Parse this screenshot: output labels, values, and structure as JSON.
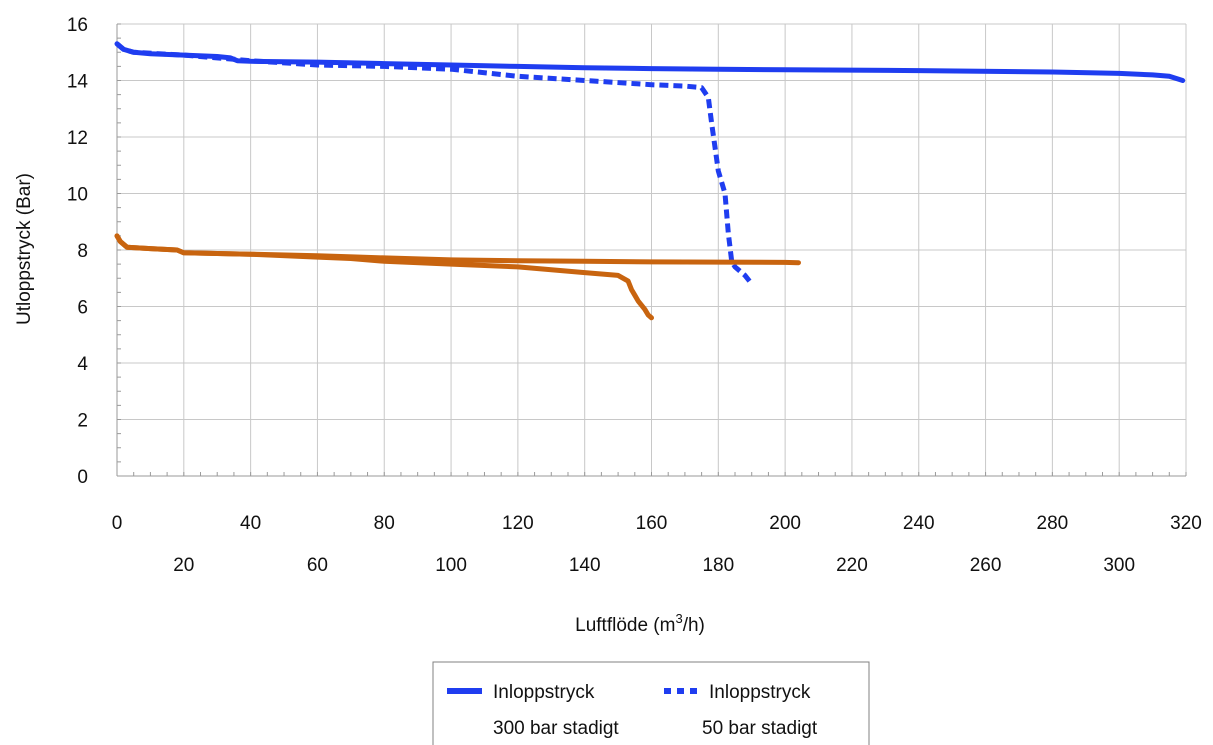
{
  "chart_data": {
    "type": "line",
    "xlabel": "Luftflöde (m",
    "xlabel_sup": "3",
    "xlabel_end": "/h)",
    "ylabel": "Utloppstryck (Bar)",
    "xlim": [
      0,
      320
    ],
    "ylim": [
      0,
      16
    ],
    "grid": true,
    "x_ticks_row1": [
      0,
      40,
      80,
      120,
      160,
      200,
      240,
      280,
      320
    ],
    "x_ticks_row2": [
      20,
      60,
      100,
      140,
      180,
      220,
      260,
      300
    ],
    "y_ticks": [
      0,
      2,
      4,
      6,
      8,
      10,
      12,
      14,
      16
    ],
    "legend_position": "bottom",
    "legend": [
      {
        "line1": "Inloppstryck",
        "line2": "300 bar stadigt",
        "style": "solid",
        "color": "#1f3df0"
      },
      {
        "line1": "Inloppstryck",
        "line2": "50 bar stadigt",
        "style": "dotted",
        "color": "#1f3df0"
      }
    ],
    "series": [
      {
        "style": "solid",
        "color": "#1f3df0",
        "x": [
          0,
          2,
          5,
          10,
          20,
          30,
          34,
          36,
          40,
          60,
          80,
          100,
          120,
          140,
          160,
          180,
          200,
          240,
          280,
          300,
          310,
          315,
          319
        ],
        "y": [
          15.3,
          15.1,
          15.0,
          14.95,
          14.9,
          14.85,
          14.8,
          14.7,
          14.68,
          14.65,
          14.6,
          14.55,
          14.5,
          14.45,
          14.42,
          14.4,
          14.38,
          14.35,
          14.3,
          14.25,
          14.2,
          14.15,
          14.0
        ]
      },
      {
        "style": "dotted",
        "color": "#1f3df0",
        "x": [
          0,
          2,
          5,
          20,
          40,
          60,
          80,
          100,
          120,
          140,
          160,
          170,
          175,
          177,
          178,
          180,
          182,
          183,
          184,
          185,
          188,
          190
        ],
        "y": [
          15.3,
          15.1,
          15.0,
          14.9,
          14.7,
          14.55,
          14.5,
          14.4,
          14.15,
          14.0,
          13.85,
          13.8,
          13.75,
          13.4,
          12.5,
          10.8,
          10.0,
          8.6,
          7.6,
          7.4,
          7.1,
          6.8
        ]
      },
      {
        "style": "solid",
        "color": "#c8640f",
        "x": [
          0,
          1,
          3,
          10,
          18,
          20,
          40,
          60,
          80,
          100,
          120,
          140,
          160,
          180,
          200,
          204
        ],
        "y": [
          8.5,
          8.3,
          8.1,
          8.05,
          8.0,
          7.9,
          7.85,
          7.8,
          7.72,
          7.65,
          7.62,
          7.6,
          7.58,
          7.57,
          7.56,
          7.55
        ]
      },
      {
        "style": "solid",
        "color": "#c8640f",
        "x": [
          0,
          1,
          3,
          10,
          18,
          20,
          40,
          60,
          70,
          80,
          100,
          120,
          140,
          150,
          153,
          154,
          155,
          156,
          158,
          159,
          160
        ],
        "y": [
          8.5,
          8.3,
          8.1,
          8.05,
          8.0,
          7.9,
          7.85,
          7.75,
          7.7,
          7.6,
          7.5,
          7.4,
          7.2,
          7.1,
          6.9,
          6.6,
          6.4,
          6.2,
          5.9,
          5.7,
          5.6
        ]
      }
    ]
  }
}
